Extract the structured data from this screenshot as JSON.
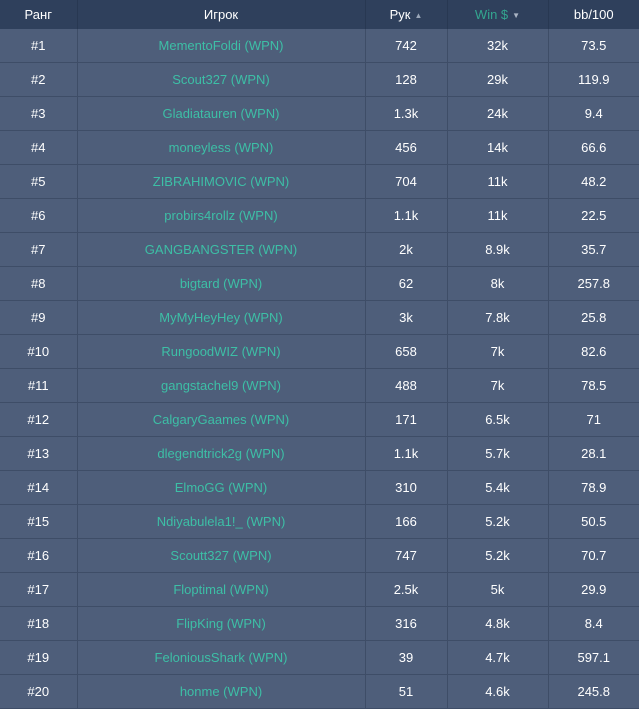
{
  "header": {
    "rank": "Ранг",
    "player": "Игрок",
    "hands": "Рук",
    "hands_sort_icon": "sort-up-icon",
    "win": "Win $",
    "win_sort_icon": "sort-down-icon",
    "bb100": "bb/100"
  },
  "colors": {
    "header_bg": "#2f405c",
    "row_bg": "#4e5e7a",
    "link": "#3dbfa6",
    "active_sort": "#33a58f"
  },
  "rows": [
    {
      "rank": "#1",
      "player": "MementoFoldi (WPN)",
      "hands": "742",
      "win": "32k",
      "bb100": "73.5"
    },
    {
      "rank": "#2",
      "player": "Scout327 (WPN)",
      "hands": "128",
      "win": "29k",
      "bb100": "119.9"
    },
    {
      "rank": "#3",
      "player": "Gladiatauren (WPN)",
      "hands": "1.3k",
      "win": "24k",
      "bb100": "9.4"
    },
    {
      "rank": "#4",
      "player": "moneyless (WPN)",
      "hands": "456",
      "win": "14k",
      "bb100": "66.6"
    },
    {
      "rank": "#5",
      "player": "ZIBRAHIMOVIC (WPN)",
      "hands": "704",
      "win": "11k",
      "bb100": "48.2"
    },
    {
      "rank": "#6",
      "player": "probirs4rollz (WPN)",
      "hands": "1.1k",
      "win": "11k",
      "bb100": "22.5"
    },
    {
      "rank": "#7",
      "player": "GANGBANGSTER (WPN)",
      "hands": "2k",
      "win": "8.9k",
      "bb100": "35.7"
    },
    {
      "rank": "#8",
      "player": "bigtard (WPN)",
      "hands": "62",
      "win": "8k",
      "bb100": "257.8"
    },
    {
      "rank": "#9",
      "player": "MyMyHeyHey (WPN)",
      "hands": "3k",
      "win": "7.8k",
      "bb100": "25.8"
    },
    {
      "rank": "#10",
      "player": "RungoodWIZ (WPN)",
      "hands": "658",
      "win": "7k",
      "bb100": "82.6"
    },
    {
      "rank": "#11",
      "player": "gangstachel9 (WPN)",
      "hands": "488",
      "win": "7k",
      "bb100": "78.5"
    },
    {
      "rank": "#12",
      "player": "CalgaryGaames (WPN)",
      "hands": "171",
      "win": "6.5k",
      "bb100": "71"
    },
    {
      "rank": "#13",
      "player": "dlegendtrick2g (WPN)",
      "hands": "1.1k",
      "win": "5.7k",
      "bb100": "28.1"
    },
    {
      "rank": "#14",
      "player": "ElmoGG (WPN)",
      "hands": "310",
      "win": "5.4k",
      "bb100": "78.9"
    },
    {
      "rank": "#15",
      "player": "Ndiyabulela1!_ (WPN)",
      "hands": "166",
      "win": "5.2k",
      "bb100": "50.5"
    },
    {
      "rank": "#16",
      "player": "Scoutt327 (WPN)",
      "hands": "747",
      "win": "5.2k",
      "bb100": "70.7"
    },
    {
      "rank": "#17",
      "player": "Floptimal (WPN)",
      "hands": "2.5k",
      "win": "5k",
      "bb100": "29.9"
    },
    {
      "rank": "#18",
      "player": "FlipKing (WPN)",
      "hands": "316",
      "win": "4.8k",
      "bb100": "8.4"
    },
    {
      "rank": "#19",
      "player": "FeloniousShark (WPN)",
      "hands": "39",
      "win": "4.7k",
      "bb100": "597.1"
    },
    {
      "rank": "#20",
      "player": "honme (WPN)",
      "hands": "51",
      "win": "4.6k",
      "bb100": "245.8"
    }
  ]
}
